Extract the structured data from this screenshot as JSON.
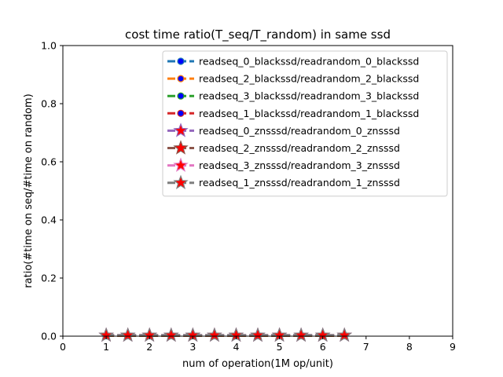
{
  "chart_data": {
    "type": "line",
    "title": "cost time ratio(T_seq/T_random) in same ssd",
    "xlabel": "num of operation(1M op/unit)",
    "ylabel": "ratio(#time on seq/#time on random)",
    "xlim": [
      0,
      9
    ],
    "ylim": [
      0,
      1.0
    ],
    "xticks": [
      "0",
      "1",
      "2",
      "3",
      "4",
      "5",
      "6",
      "7",
      "8",
      "9"
    ],
    "yticks": [
      "0.0",
      "0.2",
      "0.4",
      "0.6",
      "0.8",
      "1.0"
    ],
    "grid": false,
    "legend_position": "top-right",
    "x": [
      1,
      1.5,
      2,
      2.5,
      3,
      3.5,
      4,
      4.5,
      5,
      5.5,
      6,
      6.5
    ],
    "series": [
      {
        "name": "readseq_0_blackssd/readrandom_0_blackssd",
        "color": "#1f77b4",
        "marker": "circle",
        "marker_face": "#0000ff",
        "values": [
          0.002,
          0.002,
          0.002,
          0.002,
          0.002,
          0.002,
          0.002,
          0.002,
          0.002,
          0.002,
          0.002,
          0.002
        ]
      },
      {
        "name": "readseq_2_blackssd/readrandom_2_blackssd",
        "color": "#ff7f0e",
        "marker": "circle",
        "marker_face": "#0000ff",
        "values": [
          0.002,
          0.002,
          0.002,
          0.002,
          0.002,
          0.002,
          0.002,
          0.002,
          0.002,
          0.002,
          0.002,
          0.002
        ]
      },
      {
        "name": "readseq_3_blackssd/readrandom_3_blackssd",
        "color": "#2ca02c",
        "marker": "circle",
        "marker_face": "#0000ff",
        "values": [
          0.002,
          0.002,
          0.002,
          0.002,
          0.002,
          0.002,
          0.002,
          0.002,
          0.002,
          0.002,
          0.002,
          0.002
        ]
      },
      {
        "name": "readseq_1_blackssd/readrandom_1_blackssd",
        "color": "#d62728",
        "marker": "circle",
        "marker_face": "#0000ff",
        "values": [
          0.002,
          0.002,
          0.002,
          0.002,
          0.002,
          0.002,
          0.002,
          0.002,
          0.002,
          0.002,
          0.002,
          0.002
        ]
      },
      {
        "name": "readseq_0_znsssd/readrandom_0_znsssd",
        "color": "#9467bd",
        "marker": "star",
        "marker_face": "#ff0000",
        "values": [
          0.003,
          0.003,
          0.003,
          0.003,
          0.003,
          0.003,
          0.003,
          0.003,
          0.003,
          0.003,
          0.003,
          0.003
        ]
      },
      {
        "name": "readseq_2_znsssd/readrandom_2_znsssd",
        "color": "#8c564b",
        "marker": "star",
        "marker_face": "#ff0000",
        "values": [
          0.003,
          0.003,
          0.003,
          0.003,
          0.003,
          0.003,
          0.003,
          0.003,
          0.003,
          0.003,
          0.003,
          0.003
        ]
      },
      {
        "name": "readseq_3_znsssd/readrandom_3_znsssd",
        "color": "#e377c2",
        "marker": "star",
        "marker_face": "#ff0000",
        "values": [
          0.003,
          0.003,
          0.003,
          0.003,
          0.003,
          0.003,
          0.003,
          0.003,
          0.003,
          0.003,
          0.003,
          0.003
        ]
      },
      {
        "name": "readseq_1_znsssd/readrandom_1_znsssd",
        "color": "#7f7f7f",
        "marker": "star",
        "marker_face": "#ff0000",
        "values": [
          0.003,
          0.003,
          0.003,
          0.003,
          0.003,
          0.003,
          0.003,
          0.003,
          0.003,
          0.003,
          0.003,
          0.003
        ]
      }
    ]
  }
}
